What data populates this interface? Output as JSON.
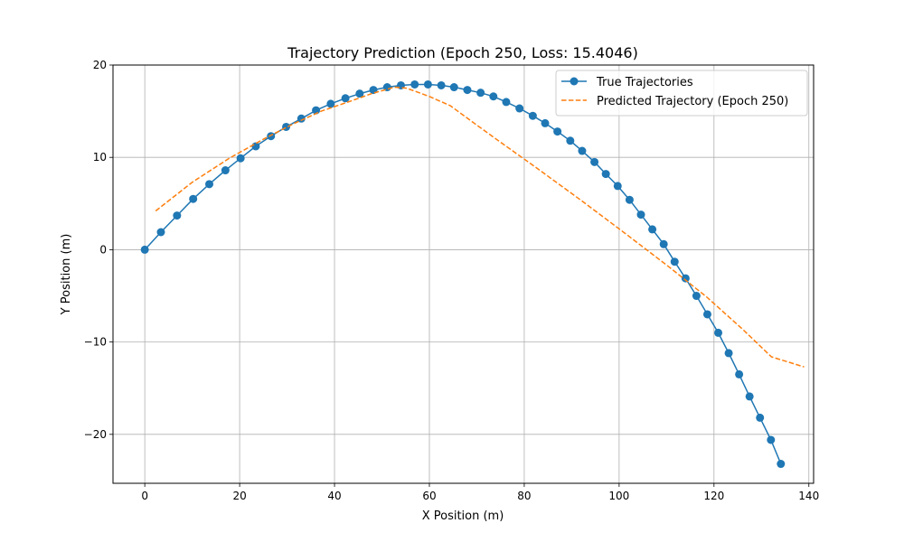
{
  "chart_data": {
    "type": "line",
    "title": "Trajectory Prediction (Epoch 250, Loss: 15.4046)",
    "xlabel": "X Position (m)",
    "ylabel": "Y Position (m)",
    "xlim": [
      -6.7,
      141
    ],
    "ylim": [
      -25.3,
      20
    ],
    "xticks": [
      0,
      20,
      40,
      60,
      80,
      100,
      120,
      140
    ],
    "xtick_labels": [
      "0",
      "20",
      "40",
      "60",
      "80",
      "100",
      "120",
      "140"
    ],
    "yticks": [
      -20,
      -10,
      0,
      10,
      20
    ],
    "ytick_labels": [
      "−20",
      "−10",
      "0",
      "10",
      "20"
    ],
    "grid": true,
    "legend_position": "top-right",
    "series": [
      {
        "name": "True Trajectories",
        "color": "#1f77b4",
        "style": "solid-marker",
        "x": [
          0,
          3.4,
          6.8,
          10.2,
          13.6,
          17.0,
          20.2,
          23.4,
          26.6,
          29.8,
          33.0,
          36.1,
          39.2,
          42.3,
          45.3,
          48.2,
          51.1,
          54.0,
          56.9,
          59.7,
          62.5,
          65.2,
          68.0,
          70.8,
          73.5,
          76.2,
          79.0,
          81.8,
          84.4,
          87.0,
          89.7,
          92.2,
          94.8,
          97.2,
          99.7,
          102.2,
          104.6,
          107.0,
          109.4,
          111.7,
          114.0,
          116.3,
          118.6,
          120.9,
          123.1,
          125.3,
          127.5,
          129.7,
          132.0,
          134.1
        ],
        "y": [
          0,
          1.9,
          3.7,
          5.5,
          7.1,
          8.6,
          9.9,
          11.2,
          12.3,
          13.3,
          14.2,
          15.1,
          15.8,
          16.4,
          16.9,
          17.3,
          17.6,
          17.8,
          17.9,
          17.9,
          17.8,
          17.6,
          17.3,
          17.0,
          16.6,
          16.0,
          15.3,
          14.5,
          13.7,
          12.8,
          11.8,
          10.7,
          9.5,
          8.2,
          6.9,
          5.4,
          3.8,
          2.2,
          0.6,
          -1.3,
          -3.1,
          -5.0,
          -7.0,
          -9.0,
          -11.2,
          -13.5,
          -15.9,
          -18.2,
          -20.6,
          -23.2
        ]
      },
      {
        "name": "Predicted Trajectory (Epoch 250)",
        "color": "#ff7f0e",
        "style": "dashed",
        "x": [
          2.3,
          10.0,
          17.8,
          25.1,
          31.2,
          37.2,
          43.4,
          47.8,
          52.6,
          55.2,
          60.0,
          64.4,
          68.9,
          74.3,
          82.2,
          92.1,
          101.7,
          110.6,
          118.4,
          126.0,
          132.1,
          139.0
        ],
        "y": [
          4.2,
          7.3,
          9.9,
          12.0,
          13.6,
          15.0,
          16.1,
          16.9,
          17.6,
          17.5,
          16.6,
          15.6,
          13.9,
          11.9,
          9.0,
          5.3,
          1.6,
          -1.9,
          -5.1,
          -8.6,
          -11.6,
          -12.7
        ]
      }
    ]
  }
}
